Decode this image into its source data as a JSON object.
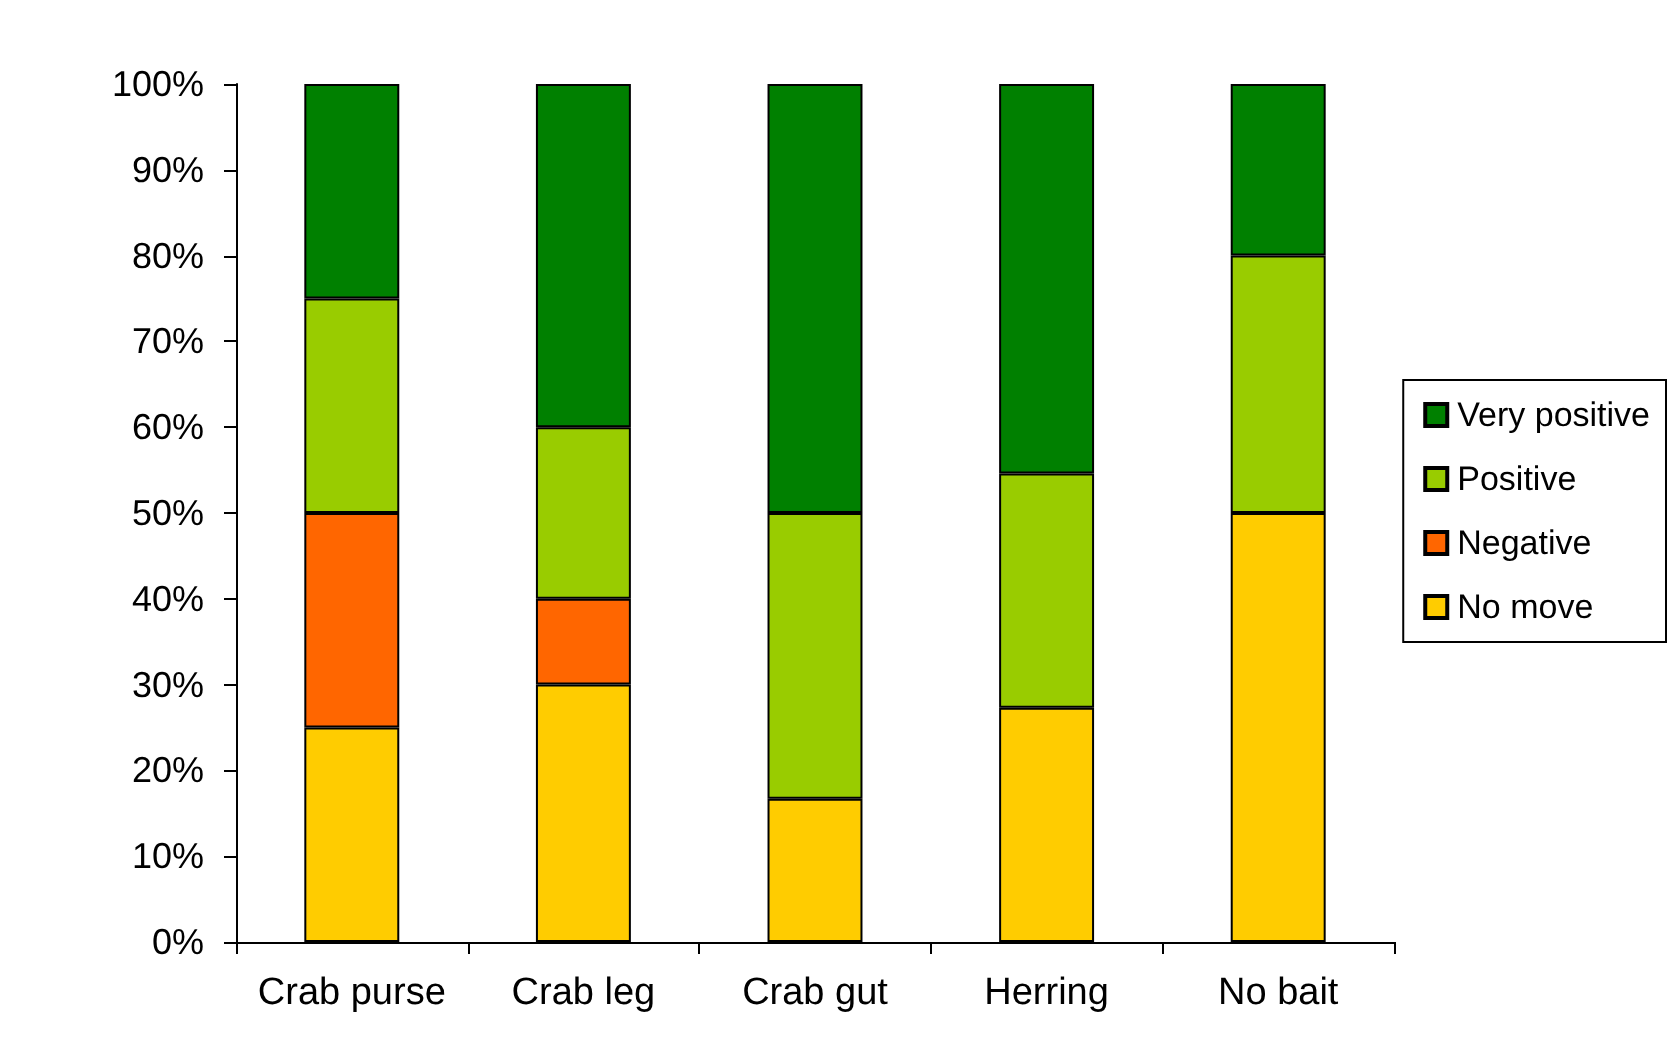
{
  "chart_data": {
    "type": "bar",
    "categories": [
      "Crab purse",
      "Crab leg",
      "Crab gut",
      "Herring",
      "No bait"
    ],
    "series": [
      {
        "name": "No move",
        "color": "#ffcc00",
        "values": [
          25,
          30,
          16.7,
          27.3,
          50
        ]
      },
      {
        "name": "Negative",
        "color": "#ff6600",
        "values": [
          25,
          10,
          0,
          0,
          0
        ]
      },
      {
        "name": "Positive",
        "color": "#99cc00",
        "values": [
          25,
          20,
          33.3,
          27.3,
          30
        ]
      },
      {
        "name": "Very positive",
        "color": "#008000",
        "values": [
          25,
          40,
          50,
          45.4,
          20
        ]
      }
    ],
    "stacked": true,
    "ylim": [
      0,
      100
    ],
    "yticks": [
      {
        "value": 0,
        "label": "0%"
      },
      {
        "value": 10,
        "label": "10%"
      },
      {
        "value": 20,
        "label": "20%"
      },
      {
        "value": 30,
        "label": "30%"
      },
      {
        "value": 40,
        "label": "40%"
      },
      {
        "value": 50,
        "label": "50%"
      },
      {
        "value": 60,
        "label": "60%"
      },
      {
        "value": 70,
        "label": "70%"
      },
      {
        "value": 80,
        "label": "80%"
      },
      {
        "value": 90,
        "label": "90%"
      },
      {
        "value": 100,
        "label": "100%"
      }
    ],
    "legend": "right"
  }
}
